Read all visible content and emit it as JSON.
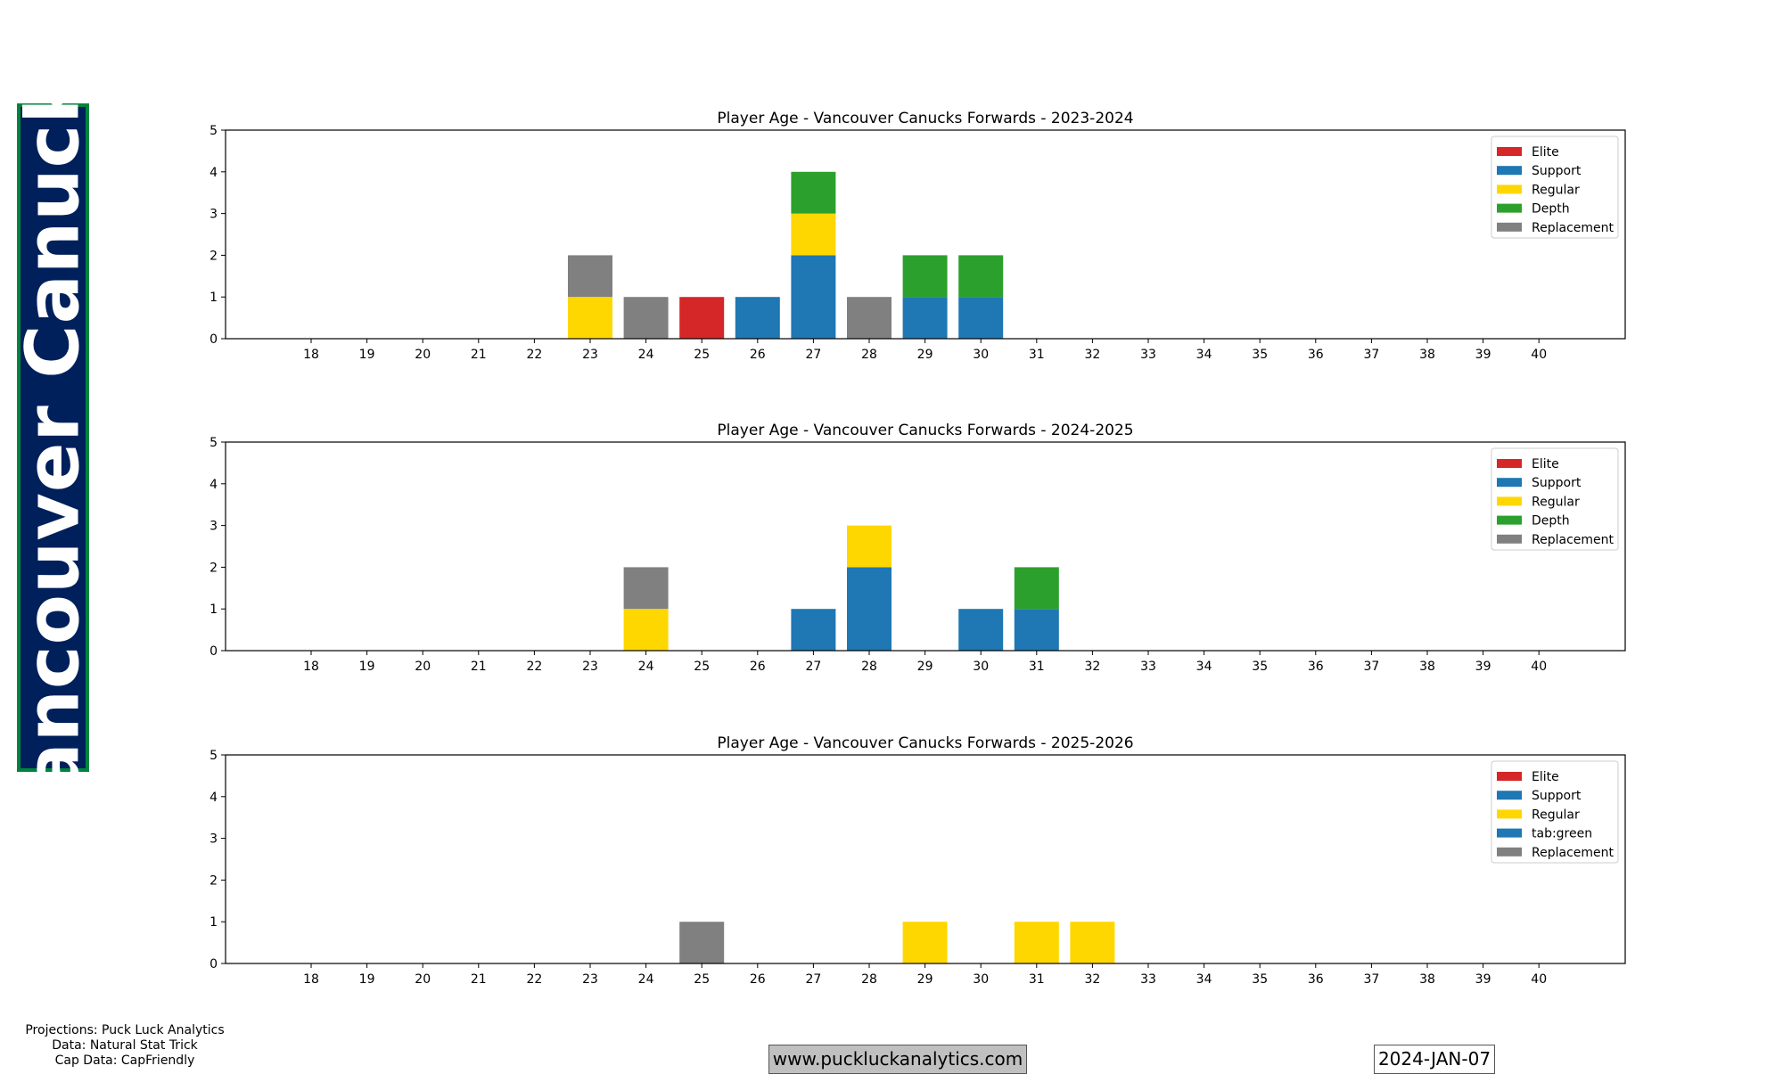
{
  "banner": {
    "team": "Vancouver Canucks"
  },
  "credits": {
    "line1": "Projections: Puck Luck Analytics",
    "line2": "Data: Natural Stat Trick",
    "line3": "Cap Data: CapFriendly"
  },
  "footer": {
    "website": "www.puckluckanalytics.com",
    "date": "2024-JAN-07"
  },
  "colors": {
    "banner_bg": "#00205b",
    "banner_border": "#00843d"
  },
  "chart_data": [
    {
      "type": "bar",
      "stacked": true,
      "title": "Player Age - Vancouver Canucks Forwards - 2023-2024",
      "xlabel": "",
      "ylabel": "",
      "ylim": [
        0,
        5
      ],
      "yticks": [
        "0",
        "1",
        "2",
        "3",
        "4",
        "5"
      ],
      "categories": [
        "18",
        "19",
        "20",
        "21",
        "22",
        "23",
        "24",
        "25",
        "26",
        "27",
        "28",
        "29",
        "30",
        "31",
        "32",
        "33",
        "34",
        "35",
        "36",
        "37",
        "38",
        "39",
        "40"
      ],
      "legend_position": "top-right",
      "series": [
        {
          "name": "Elite",
          "color": "#d62728",
          "values": [
            0,
            0,
            0,
            0,
            0,
            0,
            0,
            1,
            0,
            0,
            0,
            0,
            0,
            0,
            0,
            0,
            0,
            0,
            0,
            0,
            0,
            0,
            0
          ]
        },
        {
          "name": "Support",
          "color": "#1f77b4",
          "values": [
            0,
            0,
            0,
            0,
            0,
            0,
            0,
            0,
            1,
            2,
            0,
            1,
            1,
            0,
            0,
            0,
            0,
            0,
            0,
            0,
            0,
            0,
            0
          ]
        },
        {
          "name": "Regular",
          "color": "#ffd700",
          "values": [
            0,
            0,
            0,
            0,
            0,
            1,
            0,
            0,
            0,
            1,
            0,
            0,
            0,
            0,
            0,
            0,
            0,
            0,
            0,
            0,
            0,
            0,
            0
          ]
        },
        {
          "name": "Depth",
          "color": "#2ca02c",
          "values": [
            0,
            0,
            0,
            0,
            0,
            0,
            0,
            0,
            0,
            1,
            0,
            1,
            1,
            0,
            0,
            0,
            0,
            0,
            0,
            0,
            0,
            0,
            0
          ]
        },
        {
          "name": "Replacement",
          "color": "#808080",
          "values": [
            0,
            0,
            0,
            0,
            0,
            1,
            1,
            0,
            0,
            0,
            1,
            0,
            0,
            0,
            0,
            0,
            0,
            0,
            0,
            0,
            0,
            0,
            0
          ]
        }
      ]
    },
    {
      "type": "bar",
      "stacked": true,
      "title": "Player Age - Vancouver Canucks Forwards - 2024-2025",
      "xlabel": "",
      "ylabel": "",
      "ylim": [
        0,
        5
      ],
      "yticks": [
        "0",
        "1",
        "2",
        "3",
        "4",
        "5"
      ],
      "categories": [
        "18",
        "19",
        "20",
        "21",
        "22",
        "23",
        "24",
        "25",
        "26",
        "27",
        "28",
        "29",
        "30",
        "31",
        "32",
        "33",
        "34",
        "35",
        "36",
        "37",
        "38",
        "39",
        "40"
      ],
      "legend_position": "top-right",
      "series": [
        {
          "name": "Elite",
          "color": "#d62728",
          "values": [
            0,
            0,
            0,
            0,
            0,
            0,
            0,
            0,
            0,
            0,
            0,
            0,
            0,
            0,
            0,
            0,
            0,
            0,
            0,
            0,
            0,
            0,
            0
          ]
        },
        {
          "name": "Support",
          "color": "#1f77b4",
          "values": [
            0,
            0,
            0,
            0,
            0,
            0,
            0,
            0,
            0,
            1,
            2,
            0,
            1,
            1,
            0,
            0,
            0,
            0,
            0,
            0,
            0,
            0,
            0
          ]
        },
        {
          "name": "Regular",
          "color": "#ffd700",
          "values": [
            0,
            0,
            0,
            0,
            0,
            0,
            1,
            0,
            0,
            0,
            1,
            0,
            0,
            0,
            0,
            0,
            0,
            0,
            0,
            0,
            0,
            0,
            0
          ]
        },
        {
          "name": "Depth",
          "color": "#2ca02c",
          "values": [
            0,
            0,
            0,
            0,
            0,
            0,
            0,
            0,
            0,
            0,
            0,
            0,
            0,
            1,
            0,
            0,
            0,
            0,
            0,
            0,
            0,
            0,
            0
          ]
        },
        {
          "name": "Replacement",
          "color": "#808080",
          "values": [
            0,
            0,
            0,
            0,
            0,
            0,
            1,
            0,
            0,
            0,
            0,
            0,
            0,
            0,
            0,
            0,
            0,
            0,
            0,
            0,
            0,
            0,
            0
          ]
        }
      ]
    },
    {
      "type": "bar",
      "stacked": true,
      "title": "Player Age - Vancouver Canucks Forwards - 2025-2026",
      "xlabel": "",
      "ylabel": "",
      "ylim": [
        0,
        5
      ],
      "yticks": [
        "0",
        "1",
        "2",
        "3",
        "4",
        "5"
      ],
      "categories": [
        "18",
        "19",
        "20",
        "21",
        "22",
        "23",
        "24",
        "25",
        "26",
        "27",
        "28",
        "29",
        "30",
        "31",
        "32",
        "33",
        "34",
        "35",
        "36",
        "37",
        "38",
        "39",
        "40"
      ],
      "legend_position": "top-right",
      "series": [
        {
          "name": "Elite",
          "color": "#d62728",
          "values": [
            0,
            0,
            0,
            0,
            0,
            0,
            0,
            0,
            0,
            0,
            0,
            0,
            0,
            0,
            0,
            0,
            0,
            0,
            0,
            0,
            0,
            0,
            0
          ]
        },
        {
          "name": "Support",
          "color": "#1f77b4",
          "values": [
            0,
            0,
            0,
            0,
            0,
            0,
            0,
            0,
            0,
            0,
            0,
            0,
            0,
            0,
            0,
            0,
            0,
            0,
            0,
            0,
            0,
            0,
            0
          ]
        },
        {
          "name": "Regular",
          "color": "#ffd700",
          "values": [
            0,
            0,
            0,
            0,
            0,
            0,
            0,
            0,
            0,
            0,
            0,
            1,
            0,
            1,
            1,
            0,
            0,
            0,
            0,
            0,
            0,
            0,
            0
          ]
        },
        {
          "name": "tab:green",
          "color": "#1f77b4",
          "values": [
            0,
            0,
            0,
            0,
            0,
            0,
            0,
            0,
            0,
            0,
            0,
            0,
            0,
            0,
            0,
            0,
            0,
            0,
            0,
            0,
            0,
            0,
            0
          ]
        },
        {
          "name": "Replacement",
          "color": "#808080",
          "values": [
            0,
            0,
            0,
            0,
            0,
            0,
            0,
            1,
            0,
            0,
            0,
            0,
            0,
            0,
            0,
            0,
            0,
            0,
            0,
            0,
            0,
            0,
            0
          ]
        }
      ]
    }
  ]
}
